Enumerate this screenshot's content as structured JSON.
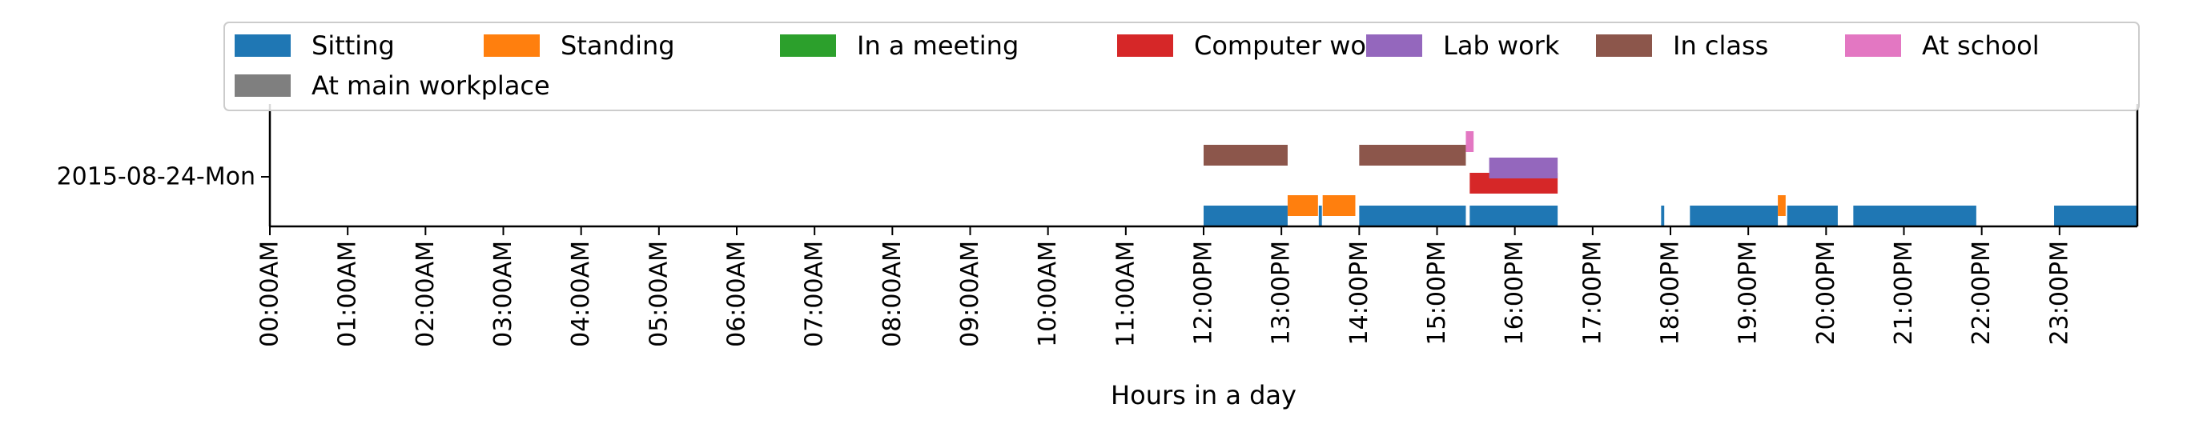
{
  "chart_data": {
    "type": "timeline",
    "xlabel": "Hours in a day",
    "ylabel": "",
    "xlim": [
      0,
      24
    ],
    "x_ticks": [
      {
        "value": 0,
        "label": "00:00AM"
      },
      {
        "value": 1,
        "label": "01:00AM"
      },
      {
        "value": 2,
        "label": "02:00AM"
      },
      {
        "value": 3,
        "label": "03:00AM"
      },
      {
        "value": 4,
        "label": "04:00AM"
      },
      {
        "value": 5,
        "label": "05:00AM"
      },
      {
        "value": 6,
        "label": "06:00AM"
      },
      {
        "value": 7,
        "label": "07:00AM"
      },
      {
        "value": 8,
        "label": "08:00AM"
      },
      {
        "value": 9,
        "label": "09:00AM"
      },
      {
        "value": 10,
        "label": "10:00AM"
      },
      {
        "value": 11,
        "label": "11:00AM"
      },
      {
        "value": 12,
        "label": "12:00PM"
      },
      {
        "value": 13,
        "label": "13:00PM"
      },
      {
        "value": 14,
        "label": "14:00PM"
      },
      {
        "value": 15,
        "label": "15:00PM"
      },
      {
        "value": 16,
        "label": "16:00PM"
      },
      {
        "value": 17,
        "label": "17:00PM"
      },
      {
        "value": 18,
        "label": "18:00PM"
      },
      {
        "value": 19,
        "label": "19:00PM"
      },
      {
        "value": 20,
        "label": "20:00PM"
      },
      {
        "value": 21,
        "label": "21:00PM"
      },
      {
        "value": 22,
        "label": "22:00PM"
      },
      {
        "value": 23,
        "label": "23:00PM"
      }
    ],
    "day_label": "2015-08-24-Mon",
    "grid": false,
    "legend_position": "top",
    "series": [
      {
        "name": "Sitting",
        "color": "#1f77b4",
        "level": 0,
        "intervals": [
          [
            12.0,
            13.08
          ],
          [
            13.48,
            13.52
          ],
          [
            14.0,
            15.37
          ],
          [
            15.42,
            16.55
          ],
          [
            17.88,
            17.92
          ],
          [
            18.25,
            19.38
          ],
          [
            19.5,
            20.15
          ],
          [
            20.35,
            21.93
          ],
          [
            22.93,
            24.0
          ]
        ]
      },
      {
        "name": "Standing",
        "color": "#ff7f0e",
        "level": 1,
        "intervals": [
          [
            13.08,
            13.47
          ],
          [
            13.53,
            13.95
          ],
          [
            19.38,
            19.48
          ]
        ]
      },
      {
        "name": "In a meeting",
        "color": "#2ca02c",
        "level": 2,
        "intervals": []
      },
      {
        "name": "Computer work",
        "color": "#d62728",
        "level": 3,
        "intervals": [
          [
            15.42,
            16.55
          ]
        ]
      },
      {
        "name": "Lab work",
        "color": "#9467bd",
        "level": 4,
        "intervals": [
          [
            15.67,
            16.55
          ]
        ]
      },
      {
        "name": "In class",
        "color": "#8c564b",
        "level": 5,
        "intervals": [
          [
            12.0,
            13.08
          ],
          [
            14.0,
            15.37
          ]
        ]
      },
      {
        "name": "At school",
        "color": "#e377c2",
        "level": 6,
        "intervals": [
          [
            15.37,
            15.47
          ]
        ]
      },
      {
        "name": "At main workplace",
        "color": "#7f7f7f",
        "level": 7,
        "intervals": []
      }
    ]
  }
}
